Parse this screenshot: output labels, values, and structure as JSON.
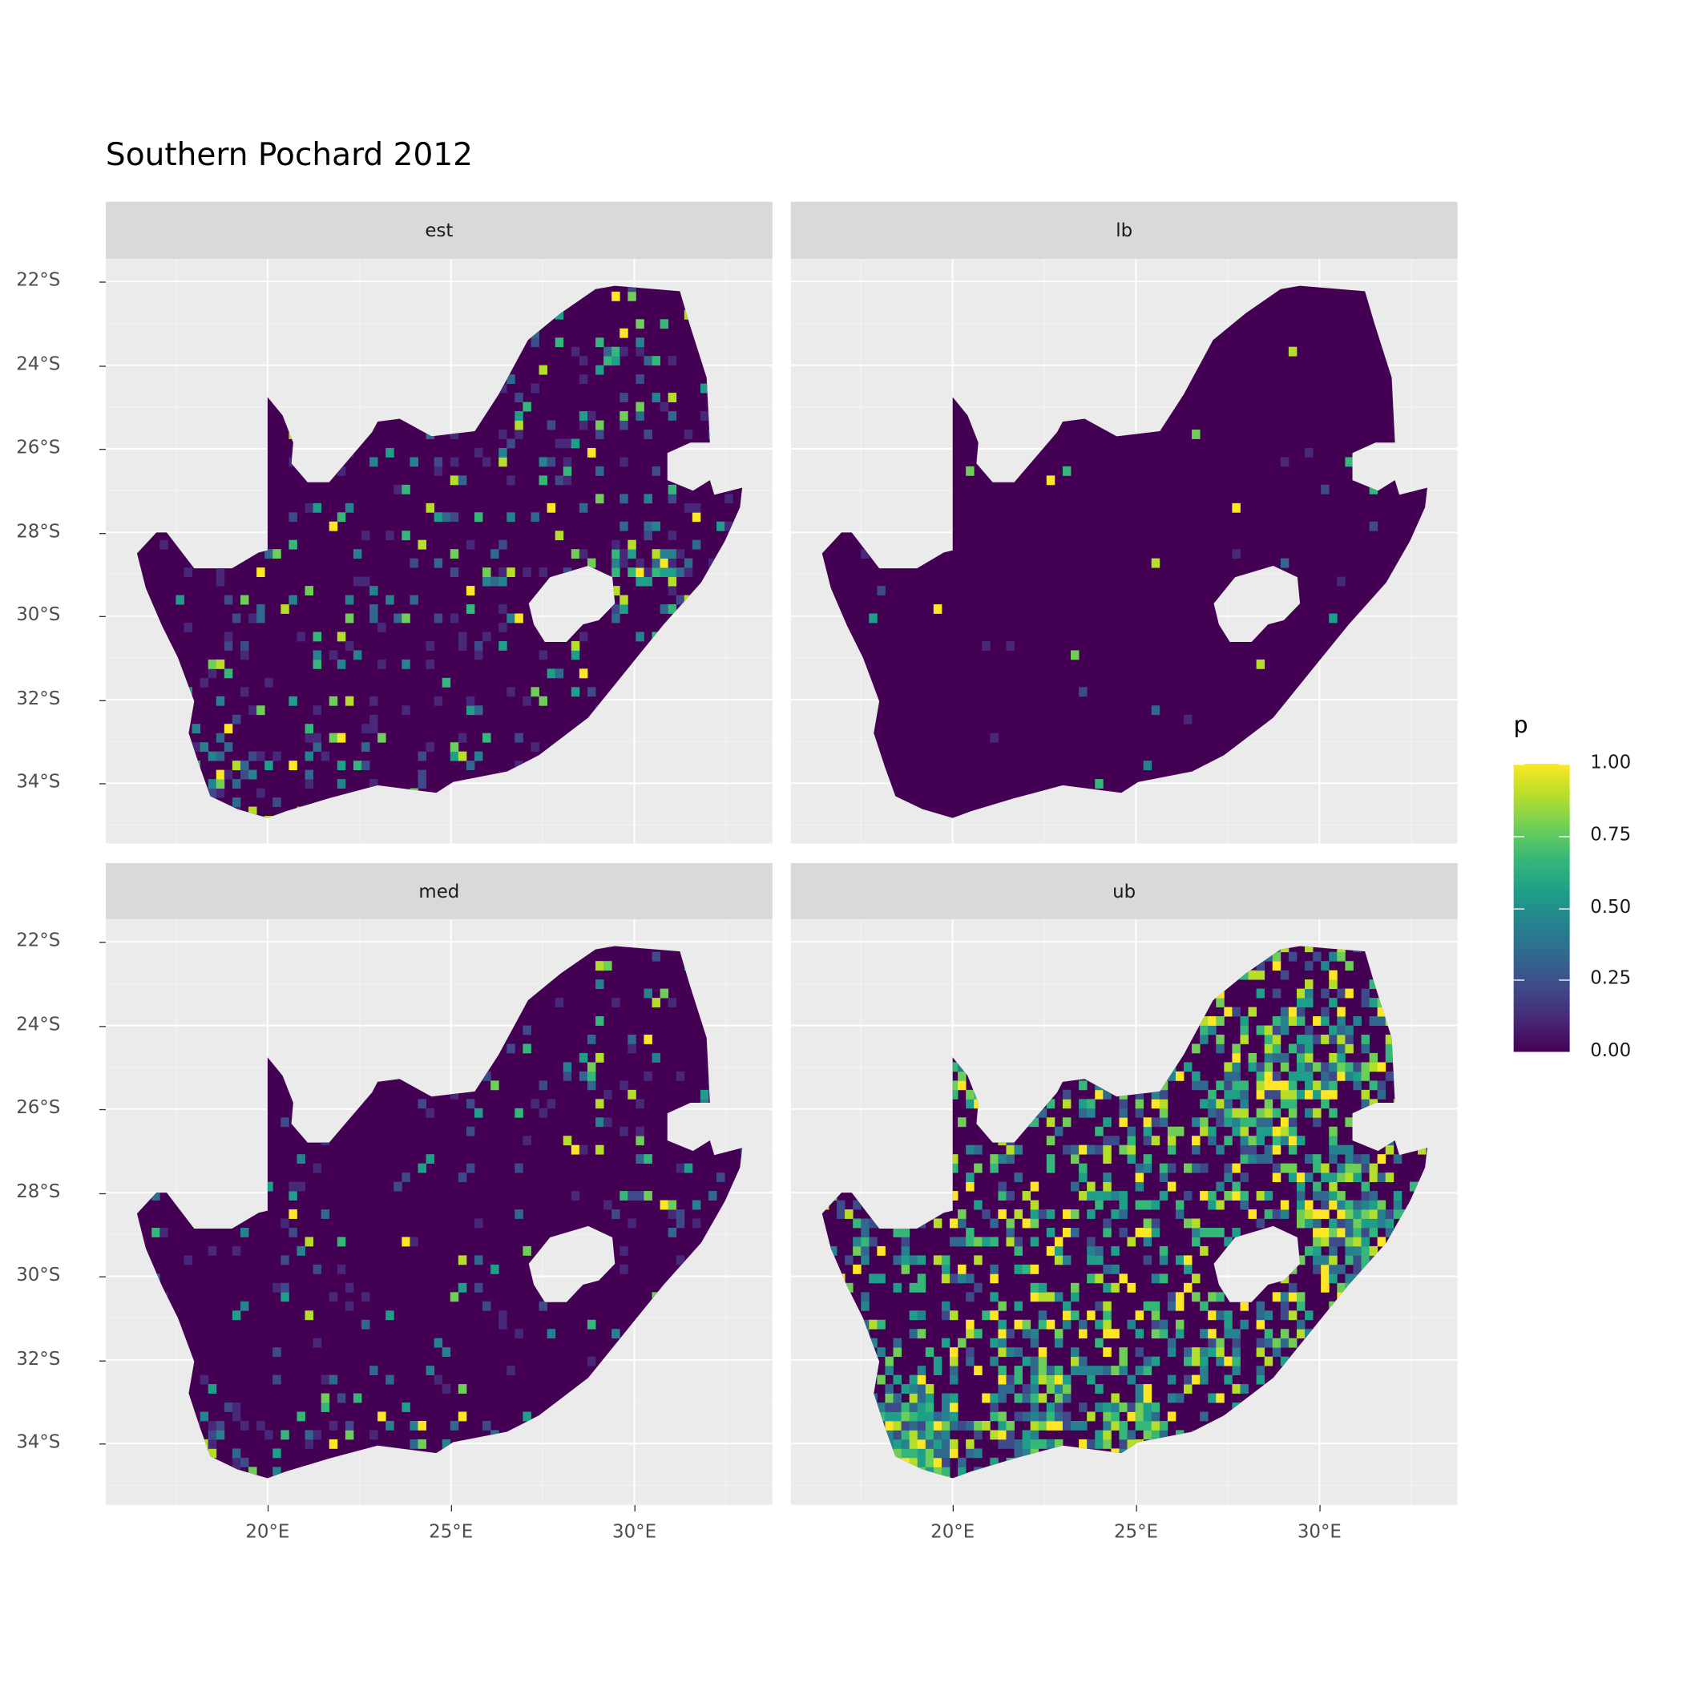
{
  "title": "Southern Pochard 2012",
  "legend": {
    "title": "p",
    "ticks": [
      "1.00",
      "0.75",
      "0.50",
      "0.25",
      "0.00"
    ],
    "palette": "viridis",
    "range": [
      0,
      1
    ]
  },
  "facets": [
    {
      "label": "est"
    },
    {
      "label": "lb"
    },
    {
      "label": "med"
    },
    {
      "label": "ub"
    }
  ],
  "x_ticks": [
    "20°E",
    "25°E",
    "30°E"
  ],
  "y_ticks": [
    "22°S",
    "24°S",
    "26°S",
    "28°S",
    "30°S",
    "32°S",
    "34°S"
  ],
  "colors": {
    "panel_bg": "#ebebeb",
    "strip_bg": "#d9d9d9",
    "low": "#440154",
    "high": "#fde725"
  }
}
